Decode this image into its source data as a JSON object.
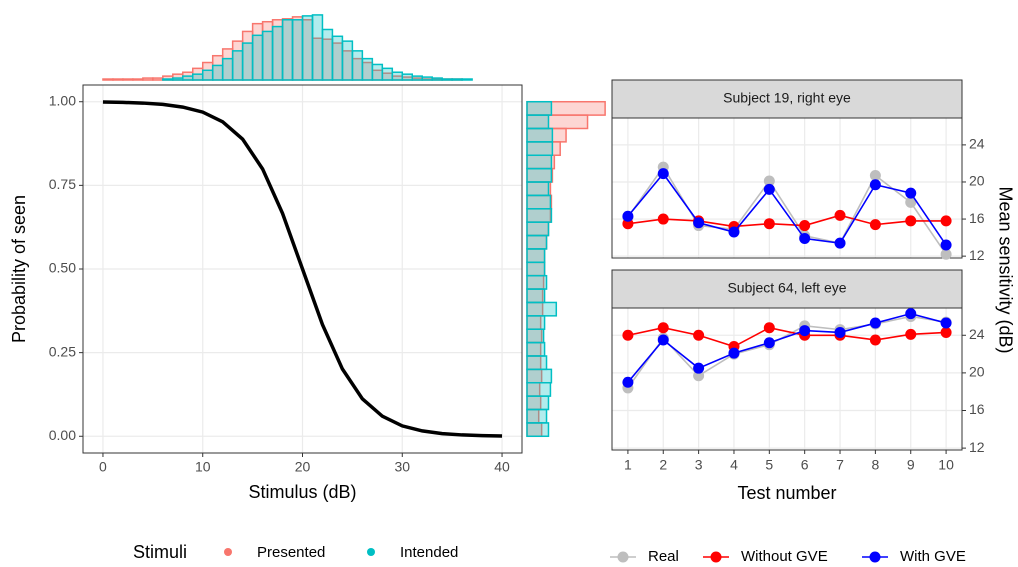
{
  "chart_data": [
    {
      "type": "line",
      "xlabel": "Stimulus (dB)",
      "ylabel": "Probability of seen",
      "color": "#000000",
      "grid": true,
      "x": [
        0,
        2,
        4,
        6,
        8,
        10,
        12,
        14,
        16,
        18,
        20,
        22,
        24,
        26,
        28,
        30,
        32,
        34,
        36,
        38,
        40
      ],
      "values": [
        0.999,
        0.998,
        0.996,
        0.992,
        0.984,
        0.969,
        0.94,
        0.888,
        0.799,
        0.666,
        0.5,
        0.334,
        0.201,
        0.112,
        0.06,
        0.031,
        0.016,
        0.008,
        0.004,
        0.002,
        0.001
      ],
      "xlim": [
        -2,
        42
      ],
      "ylim": [
        -0.05,
        1.05
      ],
      "xticks": [
        0,
        10,
        20,
        30,
        40
      ],
      "yticks": [
        {
          "value": 0,
          "label": "0.00"
        },
        {
          "value": 0.25,
          "label": "0.25"
        },
        {
          "value": 0.5,
          "label": "0.50"
        },
        {
          "value": 0.75,
          "label": "0.75"
        },
        {
          "value": 1,
          "label": "1.00"
        }
      ]
    },
    {
      "type": "histogram",
      "orientation": "vertical",
      "legend_title": "Stimuli",
      "xlim": [
        -2,
        42
      ],
      "ylim": [
        0,
        70
      ],
      "bins": [
        0,
        1,
        2,
        3,
        4,
        5,
        6,
        7,
        8,
        9,
        10,
        11,
        12,
        13,
        14,
        15,
        16,
        17,
        18,
        19,
        20,
        21,
        22,
        23,
        24,
        25,
        26,
        27,
        28,
        29,
        30,
        31,
        32,
        33,
        34,
        35,
        36,
        37,
        38,
        39,
        40
      ],
      "series": [
        {
          "name": "Presented",
          "color": "#F8766D",
          "values": [
            1,
            1,
            1,
            1,
            2,
            2,
            4,
            6,
            8,
            12,
            18,
            25,
            32,
            40,
            50,
            58,
            60,
            62,
            63,
            65,
            62,
            43,
            42,
            38,
            30,
            22,
            18,
            10,
            7,
            4,
            3,
            2,
            1,
            1,
            1,
            1,
            0,
            0,
            0,
            0
          ]
        },
        {
          "name": "Intended",
          "color": "#00BFC4",
          "values": [
            0,
            0,
            0,
            0,
            0,
            0,
            1,
            2,
            4,
            6,
            10,
            15,
            22,
            30,
            38,
            46,
            50,
            55,
            62,
            62,
            66,
            67,
            52,
            45,
            40,
            30,
            22,
            16,
            12,
            8,
            6,
            4,
            3,
            2,
            1,
            1,
            1,
            0,
            0,
            0
          ]
        }
      ]
    },
    {
      "type": "histogram",
      "orientation": "horizontal",
      "xlim": [
        0,
        85
      ],
      "ylim": [
        -0.05,
        1.05
      ],
      "bins": [
        0,
        0.04,
        0.08,
        0.12,
        0.16,
        0.2,
        0.24,
        0.28,
        0.32,
        0.36,
        0.4,
        0.44,
        0.48,
        0.52,
        0.56,
        0.6,
        0.64,
        0.68,
        0.72,
        0.76,
        0.8,
        0.84,
        0.88,
        0.92,
        0.96,
        1
      ],
      "series": [
        {
          "name": "Presented",
          "color": "#F8766D",
          "values": [
            15,
            12,
            14,
            13,
            15,
            14,
            14,
            15,
            14,
            16,
            16,
            17,
            18,
            18,
            20,
            22,
            24,
            25,
            24,
            26,
            28,
            34,
            40,
            62,
            80
          ]
        },
        {
          "name": "Intended",
          "color": "#00BFC4",
          "values": [
            22,
            20,
            22,
            24,
            25,
            20,
            18,
            17,
            18,
            30,
            18,
            20,
            18,
            18,
            20,
            22,
            25,
            24,
            22,
            25,
            25,
            26,
            26,
            22,
            25
          ]
        }
      ]
    },
    {
      "type": "line",
      "title": "Subject 19, right eye",
      "x": [
        1,
        2,
        3,
        4,
        5,
        6,
        7,
        8,
        9,
        10
      ],
      "xlim": [
        0.55,
        10.45
      ],
      "xticks": [
        1,
        2,
        3,
        4,
        5,
        6,
        7,
        8,
        9,
        10
      ],
      "y2lim": [
        11.8,
        26.9
      ],
      "y2ticks": [
        12,
        16,
        20,
        24
      ],
      "grid": true,
      "series": [
        {
          "name": "Real",
          "color": "#BEBEBE",
          "axis": "y2",
          "values": [
            16.2,
            21.6,
            15.3,
            14.9,
            20.1,
            14.2,
            13.4,
            20.7,
            17.8,
            12.2
          ]
        },
        {
          "name": "Without GVE",
          "color": "#FF0000",
          "axis": "y2",
          "values": [
            15.5,
            16.0,
            15.8,
            15.2,
            15.5,
            15.3,
            16.4,
            15.4,
            15.8,
            15.8
          ]
        },
        {
          "name": "With GVE",
          "color": "#0000FF",
          "axis": "y2",
          "values": [
            16.3,
            20.9,
            15.6,
            14.6,
            19.2,
            13.9,
            13.4,
            19.7,
            18.8,
            13.2
          ]
        }
      ]
    },
    {
      "type": "line",
      "title": "Subject 64, left eye",
      "xlabel": "Test number",
      "y2label": "Mean sensitivity (dB)",
      "x": [
        1,
        2,
        3,
        4,
        5,
        6,
        7,
        8,
        9,
        10
      ],
      "xlim": [
        0.55,
        10.45
      ],
      "xticks": [
        1,
        2,
        3,
        4,
        5,
        6,
        7,
        8,
        9,
        10
      ],
      "y2lim": [
        11.8,
        26.9
      ],
      "y2ticks": [
        12,
        16,
        20,
        24
      ],
      "grid": true,
      "series": [
        {
          "name": "Real",
          "color": "#BEBEBE",
          "axis": "y2",
          "values": [
            18.4,
            23.7,
            19.7,
            22.0,
            23.0,
            25.0,
            24.6,
            25.2,
            26.0,
            25.4
          ]
        },
        {
          "name": "Without GVE",
          "color": "#FF0000",
          "axis": "y2",
          "values": [
            24.0,
            24.8,
            24.0,
            22.8,
            24.8,
            24.0,
            24.0,
            23.5,
            24.1,
            24.3
          ]
        },
        {
          "name": "With GVE",
          "color": "#0000FF",
          "axis": "y2",
          "values": [
            19.0,
            23.5,
            20.5,
            22.1,
            23.2,
            24.5,
            24.3,
            25.3,
            26.3,
            25.3
          ]
        }
      ]
    }
  ]
}
